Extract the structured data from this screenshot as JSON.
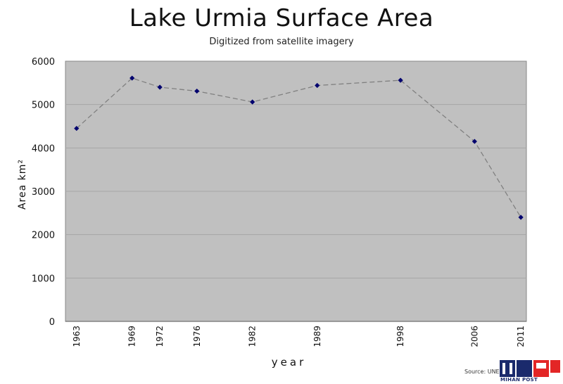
{
  "chart_data": {
    "type": "line",
    "title": "Lake Urmia Surface Area",
    "subtitle": "Digitized from satellite imagery",
    "xlabel": "year",
    "ylabel": "Area km²",
    "x": [
      "1963",
      "1969",
      "1972",
      "1976",
      "1982",
      "1989",
      "1998",
      "2006",
      "2011"
    ],
    "values": [
      4450,
      5610,
      5400,
      5310,
      5060,
      5440,
      5560,
      4150,
      2400
    ],
    "yticks": [
      "0",
      "1000",
      "2000",
      "3000",
      "4000",
      "5000",
      "6000"
    ],
    "ylim": [
      0,
      6000
    ],
    "x_scale": "time",
    "grid": "horizontal",
    "colors": {
      "plot_bg": "#c0c0c0",
      "line": "#808080",
      "marker": "#00006e",
      "grid": "#a6a6a6"
    }
  },
  "source_label": "Source: UNE",
  "logo_text": "MIHAN POST"
}
